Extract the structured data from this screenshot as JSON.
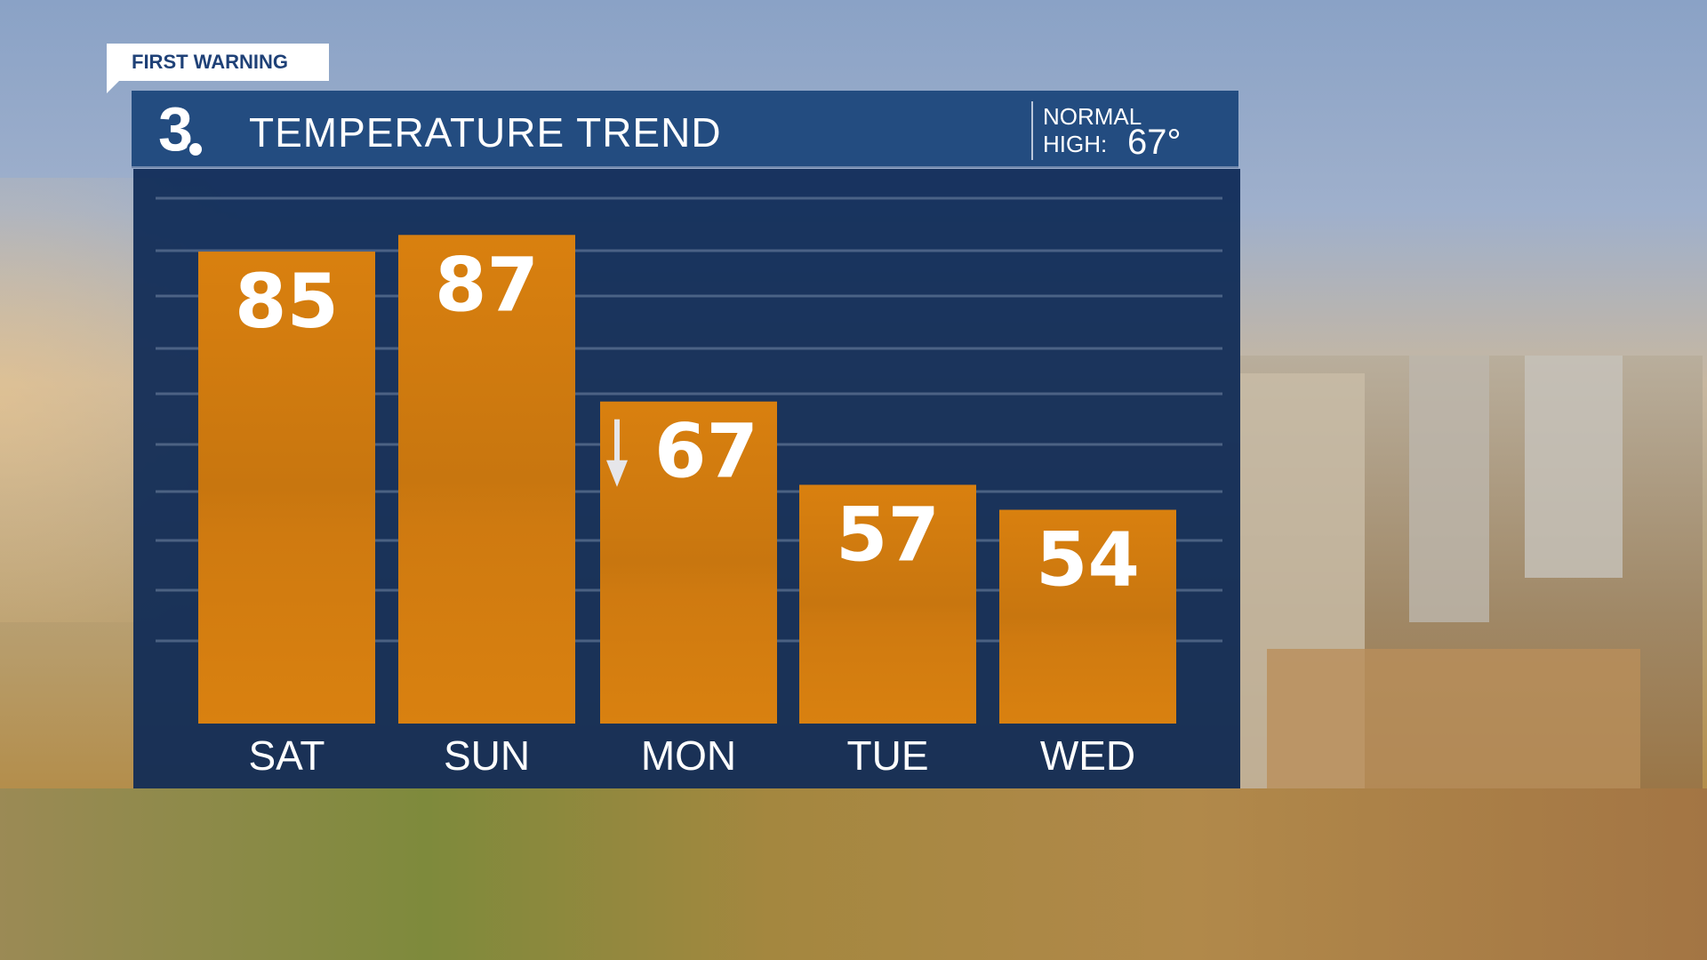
{
  "tag": "FIRST WARNING",
  "header": {
    "logo": "3",
    "title": "TEMPERATURE TREND",
    "normal_label_1": "NORMAL",
    "normal_label_2": "HIGH:",
    "normal_value": "67°"
  },
  "chart_data": {
    "type": "bar",
    "title": "TEMPERATURE TREND",
    "categories": [
      "SAT",
      "SUN",
      "MON",
      "TUE",
      "WED"
    ],
    "values": [
      85,
      87,
      67,
      57,
      54
    ],
    "value_labels": [
      "85",
      "87",
      "67",
      "57",
      "54"
    ],
    "trend_arrow": {
      "category": "MON",
      "direction": "down"
    },
    "grid": true,
    "bar_color": "#d67c0f",
    "background_color": "#0e2a56"
  }
}
